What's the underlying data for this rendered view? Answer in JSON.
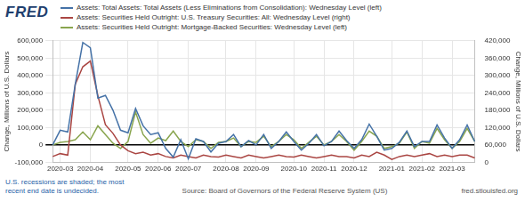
{
  "chart_data": {
    "type": "line",
    "ylabel": "Change, Millions of U.S. Dollars",
    "y2label": "Change, Millions of U.S. Dollars",
    "annotations": [
      "FRED",
      "U.S. recessions are shaded; the most recent end date is undecided.",
      "Source: Board of Governors of the Federal Reserve System (US)",
      "fred.stlouisfed.org"
    ],
    "categories": [
      null,
      "2020-03",
      null,
      null,
      null,
      "2020-04",
      null,
      null,
      null,
      null,
      "2020-05",
      null,
      null,
      null,
      "2020-06",
      null,
      null,
      null,
      "2020-07",
      null,
      null,
      null,
      null,
      "2020-08",
      null,
      null,
      null,
      "2020-09",
      null,
      null,
      null,
      null,
      "2020-10",
      null,
      null,
      null,
      "2020-11",
      null,
      null,
      null,
      "2020-12",
      null,
      null,
      null,
      null,
      "2021-01",
      null,
      null,
      null,
      "2021-02",
      null,
      null,
      null,
      "2021-03",
      null,
      null,
      null
    ],
    "series": [
      {
        "name": "Assets: Total Assets: Total Assets (Less Eliminations from Consolidation): Wednesday Level (left)",
        "color": "#4572a7",
        "axis": "y",
        "values": [
          0,
          85000,
          75000,
          350000,
          590000,
          560000,
          270000,
          285000,
          200000,
          85000,
          70000,
          210000,
          110000,
          60000,
          70000,
          -20000,
          -70000,
          30000,
          -80000,
          35000,
          20000,
          -40000,
          10000,
          20000,
          60000,
          -10000,
          25000,
          0,
          60000,
          -20000,
          20000,
          75000,
          20000,
          -30000,
          10000,
          60000,
          -5000,
          20000,
          80000,
          25000,
          -20000,
          30000,
          120000,
          50000,
          -30000,
          -20000,
          15000,
          80000,
          -10000,
          20000,
          20000,
          115000,
          40000,
          -20000,
          30000,
          115000,
          20000
        ]
      },
      {
        "name": "Assets: Securities Held Outright: U.S. Treasury Securities: All: Wednesday Level (right)",
        "color": "#aa4643",
        "axis": "y2",
        "values": [
          20000,
          30000,
          25000,
          270000,
          330000,
          350000,
          230000,
          130000,
          100000,
          60000,
          40000,
          30000,
          35000,
          25000,
          30000,
          20000,
          15000,
          25000,
          20000,
          15000,
          25000,
          20000,
          18000,
          25000,
          20000,
          15000,
          25000,
          20000,
          15000,
          20000,
          25000,
          20000,
          18000,
          25000,
          20000,
          15000,
          20000,
          25000,
          20000,
          20000,
          15000,
          25000,
          20000,
          35000,
          25000,
          10000,
          20000,
          25000,
          20000,
          25000,
          30000,
          20000,
          25000,
          20000,
          25000,
          25000,
          15000
        ]
      },
      {
        "name": "Assets: Securities Held Outright: Mortgage-Backed Securities: Wednesday Level (left)",
        "color": "#89a54e",
        "axis": "y",
        "values": [
          0,
          15000,
          20000,
          30000,
          75000,
          30000,
          110000,
          60000,
          10000,
          -20000,
          20000,
          190000,
          60000,
          10000,
          40000,
          25000,
          80000,
          20000,
          -10000,
          30000,
          20000,
          -20000,
          15000,
          20000,
          40000,
          -10000,
          20000,
          15000,
          50000,
          -10000,
          20000,
          60000,
          30000,
          -20000,
          15000,
          50000,
          0,
          20000,
          60000,
          20000,
          -30000,
          20000,
          80000,
          50000,
          -20000,
          -10000,
          10000,
          75000,
          -20000,
          20000,
          10000,
          95000,
          30000,
          -20000,
          20000,
          95000,
          20000
        ]
      }
    ],
    "ylim": [
      -100000,
      600000
    ],
    "yticks": [
      {
        "value": -100000,
        "label": "-100,000"
      },
      0,
      {
        "value": 100000,
        "label": "100,000"
      },
      {
        "value": 200000,
        "label": "200,000"
      },
      {
        "value": 300000,
        "label": "300,000"
      },
      {
        "value": 400000,
        "label": "400,000"
      },
      {
        "value": 500000,
        "label": "500,000"
      },
      {
        "value": 600000,
        "label": "600,000"
      }
    ],
    "y2lim": [
      0,
      420000
    ],
    "y2ticks": [
      0,
      {
        "value": 60000,
        "label": "60,000"
      },
      {
        "value": 120000,
        "label": "120,000"
      },
      {
        "value": 180000,
        "label": "180,000"
      },
      {
        "value": 240000,
        "label": "240,000"
      },
      {
        "value": 300000,
        "label": "300,000"
      },
      {
        "value": 360000,
        "label": "360,000"
      },
      {
        "value": 420000,
        "label": "420,000"
      }
    ],
    "grid": true,
    "legend": "top"
  }
}
